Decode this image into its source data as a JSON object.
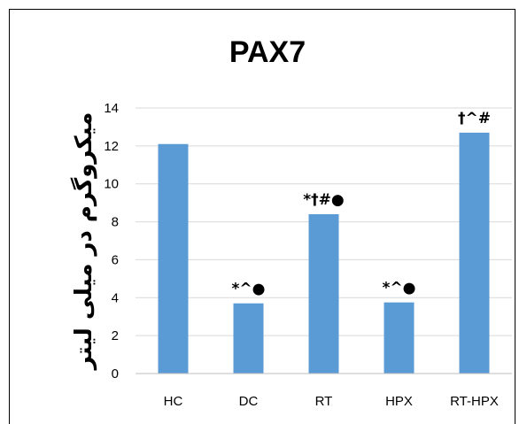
{
  "chart_data": {
    "type": "bar",
    "title": "PAX7",
    "ylabel": "میکروگرم در میلی لیتر",
    "xlabel": "",
    "categories": [
      "HC",
      "DC",
      "RT",
      "HPX",
      "RT-HPX"
    ],
    "values": [
      12.1,
      3.7,
      8.4,
      3.75,
      12.7
    ],
    "annotations": [
      "",
      "*^●",
      "*†#●",
      "*^●",
      "†^#"
    ],
    "ylim": [
      0,
      14
    ],
    "yticks": [
      0,
      2,
      4,
      6,
      8,
      10,
      12,
      14
    ],
    "grid": true,
    "legend": "none",
    "bar_color": "#5b9bd5"
  }
}
